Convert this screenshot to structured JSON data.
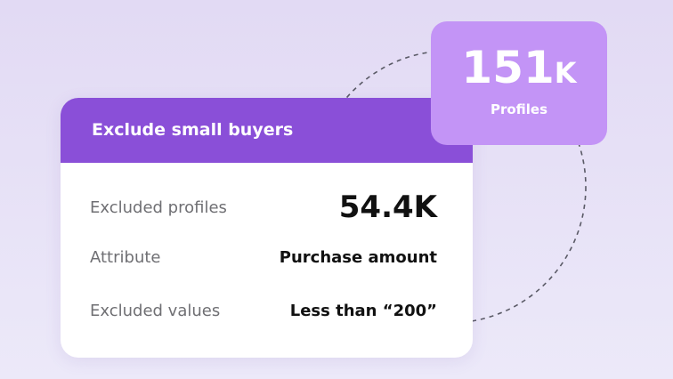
{
  "card": {
    "title": "Exclude small buyers",
    "rows": [
      [
        "Excluded profiles",
        "54.4K"
      ],
      [
        "Attribute",
        "Purchase amount"
      ],
      [
        "Excluded values",
        "Less than “200”"
      ]
    ]
  },
  "badge": {
    "value": "151",
    "unit": "K",
    "label": "Profiles"
  }
}
